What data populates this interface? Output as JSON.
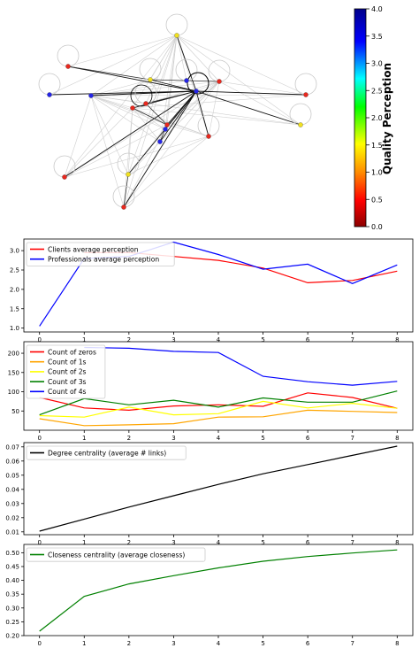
{
  "network": {
    "colorbar": {
      "label": "Quality Perception",
      "ticks": [
        "0.0",
        "0.5",
        "1.0",
        "1.5",
        "2.0",
        "2.5",
        "3.0",
        "3.5",
        "4.0"
      ],
      "colors": [
        "#8b0000",
        "#ff0000",
        "#ff8c00",
        "#ffff00",
        "#00ff00",
        "#00ffff",
        "#0000ff",
        "#00008b"
      ]
    },
    "node_colors": {
      "red": "#e8281e",
      "blue": "#2424e8",
      "yellow": "#f0e020"
    }
  },
  "chart_data": [
    {
      "type": "line",
      "x": [
        0,
        1,
        2,
        3,
        4,
        5,
        6,
        7,
        8
      ],
      "ylim": [
        0.9,
        3.3
      ],
      "yticks": [
        "1.0",
        "1.5",
        "2.0",
        "2.5",
        "3.0"
      ],
      "series": [
        {
          "name": "Clients average perception",
          "color": "#ff0000",
          "values": [
            null,
            2.95,
            2.95,
            2.85,
            2.75,
            2.55,
            2.17,
            2.23,
            2.47
          ]
        },
        {
          "name": "Professionals average perception",
          "color": "#0000ff",
          "values": [
            1.05,
            2.8,
            2.85,
            3.22,
            2.9,
            2.52,
            2.65,
            2.15,
            2.63
          ]
        }
      ]
    },
    {
      "type": "line",
      "x": [
        0,
        1,
        2,
        3,
        4,
        5,
        6,
        7,
        8
      ],
      "ylim": [
        0,
        230
      ],
      "yticks": [
        "50",
        "100",
        "150",
        "200"
      ],
      "series": [
        {
          "name": "Count of zeros",
          "color": "#ff0000",
          "values": [
            85,
            58,
            52,
            63,
            66,
            62,
            97,
            85,
            57
          ]
        },
        {
          "name": "Count of 1s",
          "color": "#ffa500",
          "values": [
            30,
            12,
            14,
            17,
            34,
            35,
            52,
            49,
            46
          ]
        },
        {
          "name": "Count of 2s",
          "color": "#ffff00",
          "values": [
            38,
            34,
            60,
            40,
            43,
            75,
            58,
            70,
            57
          ]
        },
        {
          "name": "Count of 3s",
          "color": "#008000",
          "values": [
            40,
            82,
            66,
            78,
            60,
            84,
            73,
            73,
            102
          ]
        },
        {
          "name": "Count of 4s",
          "color": "#0000ff",
          "values": [
            null,
            215,
            213,
            205,
            202,
            140,
            126,
            117,
            127
          ]
        }
      ]
    },
    {
      "type": "line",
      "x": [
        0,
        1,
        2,
        3,
        4,
        5,
        6,
        7,
        8
      ],
      "ylim": [
        0.008,
        0.073
      ],
      "yticks": [
        "0.01",
        "0.02",
        "0.03",
        "0.04",
        "0.05",
        "0.06",
        "0.07"
      ],
      "series": [
        {
          "name": "Degree centrality (average # links)",
          "color": "#000000",
          "values": [
            0.0105,
            0.019,
            0.0275,
            0.0355,
            0.0435,
            0.051,
            0.0575,
            0.064,
            0.0705
          ]
        }
      ]
    },
    {
      "type": "line",
      "x": [
        0,
        1,
        2,
        3,
        4,
        5,
        6,
        7,
        8
      ],
      "ylim": [
        0.2,
        0.53
      ],
      "yticks": [
        "0.20",
        "0.25",
        "0.30",
        "0.35",
        "0.40",
        "0.45",
        "0.50"
      ],
      "series": [
        {
          "name": "Closeness centrality (average closeness)",
          "color": "#008000",
          "values": [
            0.216,
            0.342,
            0.387,
            0.417,
            0.445,
            0.469,
            0.486,
            0.499,
            0.51
          ]
        }
      ]
    }
  ]
}
